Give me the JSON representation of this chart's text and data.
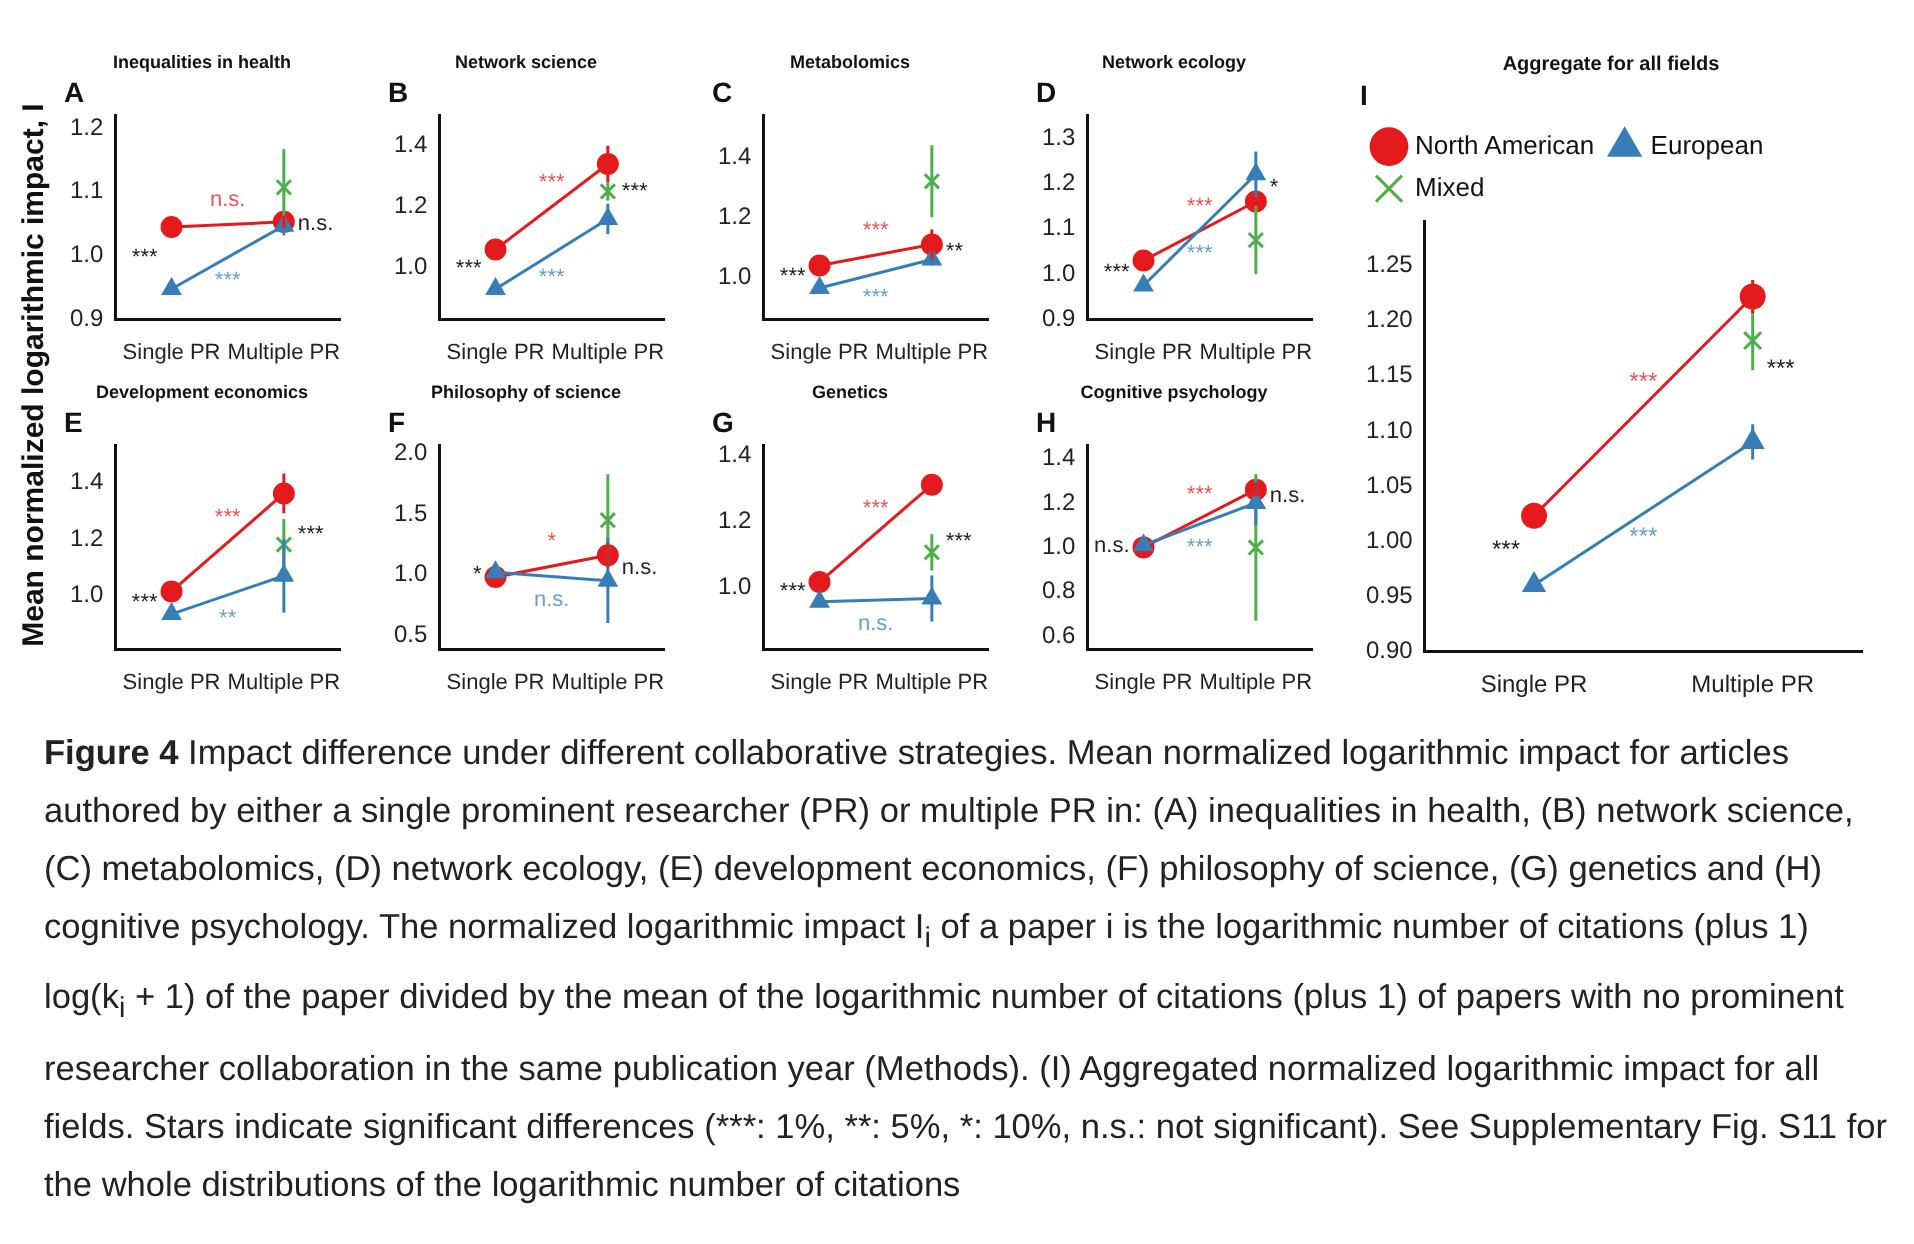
{
  "chart_data": [
    {
      "type": "line",
      "title": "Inequalities in health",
      "subtitle": "A",
      "ylabel": "Mean normalized logarithmic impact, I",
      "categories": [
        "Single PR",
        "Multiple PR"
      ],
      "ylim": [
        0.9,
        1.22
      ],
      "yticks": [
        {
          "value": 0.9,
          "label": "0.9"
        },
        {
          "value": 1,
          "label": "1.0"
        },
        1.1,
        1.2
      ],
      "series": [
        {
          "color": "#e41a1c",
          "marker": "circle",
          "values": [
            1.045,
            1.053
          ],
          "errors": [
            null,
            0.01
          ]
        },
        {
          "color": "#377eb8",
          "marker": "triangle",
          "values": [
            0.948,
            1.047
          ],
          "errors": [
            null,
            0.015
          ]
        },
        {
          "type": "scatter",
          "color": "#4daf4a",
          "marker": "cross",
          "values": [
            null,
            1.107
          ],
          "errors": [
            null,
            0.06
          ]
        }
      ],
      "annotations": [
        "***",
        "n.s.",
        "***",
        "n.s."
      ]
    },
    {
      "type": "line",
      "title": "Network science",
      "subtitle": "B",
      "categories": [
        "Single PR",
        "Multiple PR"
      ],
      "ylim": [
        0.83,
        1.5
      ],
      "yticks": [
        {
          "value": 1,
          "label": "1.0"
        },
        1.2,
        1.4
      ],
      "series": [
        {
          "color": "#e41a1c",
          "marker": "circle",
          "values": [
            1.06,
            1.34
          ],
          "errors": [
            null,
            0.06
          ]
        },
        {
          "color": "#377eb8",
          "marker": "triangle",
          "values": [
            0.93,
            1.16
          ],
          "errors": [
            null,
            0.05
          ]
        },
        {
          "type": "scatter",
          "color": "#4daf4a",
          "marker": "cross",
          "values": [
            null,
            1.25
          ],
          "errors": [
            null,
            0.03
          ]
        }
      ],
      "annotations": [
        "***",
        "***",
        "***",
        "***"
      ]
    },
    {
      "type": "line",
      "title": "Metabolomics",
      "subtitle": "C",
      "categories": [
        "Single PR",
        "Multiple PR"
      ],
      "ylim": [
        0.86,
        1.54
      ],
      "yticks": [
        {
          "value": 1,
          "label": "1.0"
        },
        1.2,
        1.4
      ],
      "series": [
        {
          "color": "#e41a1c",
          "marker": "circle",
          "values": [
            1.04,
            1.11
          ],
          "errors": [
            null,
            0.05
          ]
        },
        {
          "color": "#377eb8",
          "marker": "triangle",
          "values": [
            0.965,
            1.06
          ],
          "errors": [
            null,
            0.02
          ]
        },
        {
          "type": "scatter",
          "color": "#4daf4a",
          "marker": "cross",
          "values": [
            null,
            1.32
          ],
          "errors": [
            null,
            0.12
          ]
        }
      ],
      "annotations": [
        "***",
        "***",
        "***",
        "**"
      ]
    },
    {
      "type": "line",
      "title": "Network ecology",
      "subtitle": "D",
      "categories": [
        "Single PR",
        "Multiple PR"
      ],
      "ylim": [
        0.9,
        1.35
      ],
      "yticks": [
        0.9,
        {
          "value": 1,
          "label": "1.0"
        },
        1.1,
        1.2,
        1.3
      ],
      "series": [
        {
          "color": "#e41a1c",
          "marker": "circle",
          "values": [
            1.03,
            1.16
          ]
        },
        {
          "color": "#377eb8",
          "marker": "triangle",
          "values": [
            0.975,
            1.22
          ],
          "errors": [
            null,
            0.05
          ]
        },
        {
          "type": "scatter",
          "color": "#4daf4a",
          "marker": "cross",
          "values": [
            null,
            1.075
          ],
          "errors": [
            null,
            0.075
          ]
        }
      ],
      "annotations": [
        "***",
        "***",
        "***",
        "*"
      ]
    },
    {
      "type": "line",
      "title": "Development economics",
      "subtitle": "E",
      "categories": [
        "Single PR",
        "Multiple PR"
      ],
      "ylim": [
        0.81,
        1.53
      ],
      "yticks": [
        {
          "value": 1,
          "label": "1.0"
        },
        1.2,
        1.4
      ],
      "series": [
        {
          "color": "#e41a1c",
          "marker": "circle",
          "values": [
            1.015,
            1.36
          ],
          "errors": [
            null,
            0.07
          ]
        },
        {
          "color": "#377eb8",
          "marker": "triangle",
          "values": [
            0.935,
            1.07
          ],
          "errors": [
            null,
            0.13
          ]
        },
        {
          "type": "scatter",
          "color": "#4daf4a",
          "marker": "cross",
          "values": [
            null,
            1.18
          ],
          "errors": [
            null,
            0.09
          ]
        }
      ],
      "annotations": [
        "***",
        "***",
        "**",
        "***"
      ]
    },
    {
      "type": "line",
      "title": "Philosophy of science",
      "subtitle": "F",
      "categories": [
        "Single PR",
        "Multiple PR"
      ],
      "ylim": [
        0.38,
        2.07
      ],
      "yticks": [
        0.5,
        {
          "value": 1,
          "label": "1.0"
        },
        1.5,
        {
          "value": 2,
          "label": "2.0"
        }
      ],
      "series": [
        {
          "color": "#e41a1c",
          "marker": "circle",
          "values": [
            0.98,
            1.16
          ],
          "errors": [
            null,
            0.1
          ]
        },
        {
          "color": "#377eb8",
          "marker": "triangle",
          "values": [
            1.02,
            0.95
          ],
          "errors": [
            null,
            0.35
          ]
        },
        {
          "type": "scatter",
          "color": "#4daf4a",
          "marker": "cross",
          "values": [
            null,
            1.45
          ],
          "errors": [
            null,
            0.38
          ]
        }
      ],
      "annotations": [
        "*",
        "*",
        "n.s.",
        "n.s."
      ]
    },
    {
      "type": "line",
      "title": "Genetics",
      "subtitle": "G",
      "categories": [
        "Single PR",
        "Multiple PR"
      ],
      "ylim": [
        0.81,
        1.43
      ],
      "yticks": [
        {
          "value": 1,
          "label": "1.0"
        },
        1.2,
        1.4
      ],
      "series": [
        {
          "color": "#e41a1c",
          "marker": "circle",
          "values": [
            1.015,
            1.31
          ],
          "errors": [
            null,
            0.01
          ]
        },
        {
          "color": "#377eb8",
          "marker": "triangle",
          "values": [
            0.955,
            0.965
          ],
          "errors": [
            null,
            0.07
          ]
        },
        {
          "type": "scatter",
          "color": "#4daf4a",
          "marker": "cross",
          "values": [
            null,
            1.105
          ],
          "errors": [
            null,
            0.055
          ]
        }
      ],
      "annotations": [
        "***",
        "***",
        "n.s.",
        "***"
      ]
    },
    {
      "type": "line",
      "title": "Cognitive psychology",
      "subtitle": "H",
      "categories": [
        "Single PR",
        "Multiple PR"
      ],
      "ylim": [
        0.54,
        1.46
      ],
      "yticks": [
        0.6,
        0.8,
        {
          "value": 1,
          "label": "1.0"
        },
        1.2,
        1.4
      ],
      "series": [
        {
          "color": "#e41a1c",
          "marker": "circle",
          "values": [
            1.0,
            1.26
          ],
          "errors": [
            null,
            0.03
          ]
        },
        {
          "color": "#377eb8",
          "marker": "triangle",
          "values": [
            1.01,
            1.2
          ],
          "errors": [
            null,
            0.1
          ]
        },
        {
          "type": "scatter",
          "color": "#4daf4a",
          "marker": "cross",
          "values": [
            null,
            1.0
          ],
          "errors": [
            null,
            0.33
          ]
        }
      ],
      "annotations": [
        "n.s.",
        "***",
        "***",
        "n.s."
      ]
    },
    {
      "type": "line",
      "title": "Aggregate for all fields",
      "subtitle": "I",
      "categories": [
        "Single PR",
        "Multiple PR"
      ],
      "ylim": [
        0.9,
        1.29
      ],
      "yticks": [
        {
          "value": 0.9,
          "label": "0.90"
        },
        0.95,
        {
          "value": 1,
          "label": "1.00"
        },
        1.05,
        {
          "value": 1.1,
          "label": "1.10"
        },
        1.15,
        {
          "value": 1.2,
          "label": "1.20"
        },
        1.25
      ],
      "legend": "top left",
      "series": [
        {
          "name": "North American",
          "color": "#e41a1c",
          "marker": "circle",
          "values": [
            1.023,
            1.222
          ],
          "errors": [
            null,
            0.015
          ]
        },
        {
          "name": "European",
          "color": "#377eb8",
          "marker": "triangle",
          "values": [
            0.96,
            1.09
          ],
          "errors": [
            null,
            0.016
          ]
        },
        {
          "name": "Mixed",
          "type": "scatter",
          "color": "#4daf4a",
          "marker": "cross",
          "values": [
            null,
            1.182
          ],
          "errors": [
            null,
            0.027
          ]
        }
      ],
      "annotations": [
        "***",
        "***",
        "***",
        "***"
      ]
    },
    {
      "type": "other",
      "title": "Figure 4",
      "annotations": [
        "Impact difference under different collaborative strategies. Mean normalized logarithmic impact for articles authored by either a single prominent researcher (PR) or multiple PR in: (A) inequalities in health, (B) network science, (C) metabolomics, (D) network ecology, (E) development economics, (F) philosophy of science, (G) genetics and (H) cognitive psychology. The normalized logarithmic impact I$_{i}$ of a paper i is the logarithmic number of citations (plus 1) log(k$_{i}$ + 1) of the paper divided by the mean of the logarithmic number of citations (plus 1) of papers with no prominent researcher collaboration in the same publication year (Methods). (I) Aggregated normalized logarithmic impact for all fields. Stars indicate significant differences (***: 1%, **: 5%, *: 10%, n.s.: not significant). See Supplementary Fig. S11 for the whole distributions of the logarithmic number of citations"
      ]
    }
  ]
}
